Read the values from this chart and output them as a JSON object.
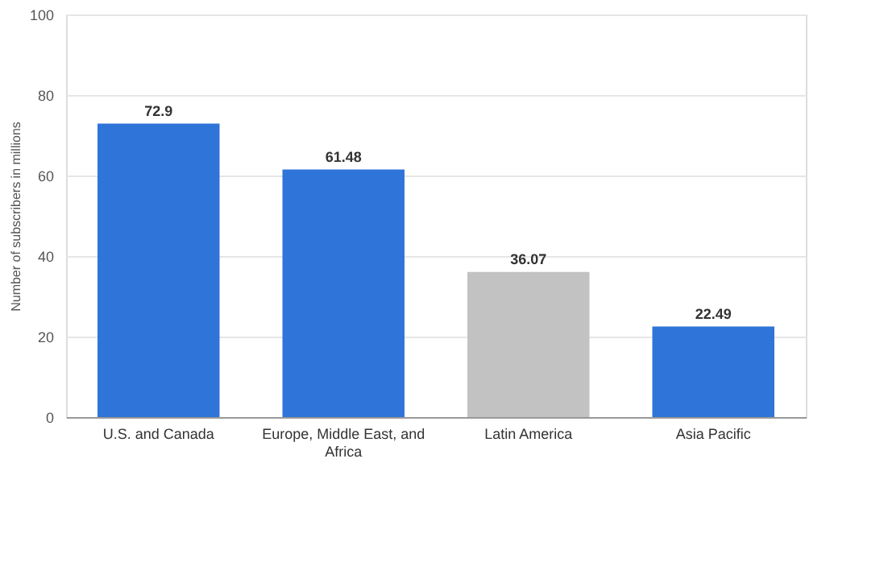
{
  "chart_data": {
    "type": "bar",
    "ylabel": "Number of subscribers in millions",
    "categories": [
      "U.S. and Canada",
      "Europe, Middle East, and Africa",
      "Latin America",
      "Asia Pacific"
    ],
    "values": [
      72.9,
      61.48,
      36.07,
      22.49
    ],
    "colors": [
      "#2f74d8",
      "#2f74d8",
      "#c2c2c2",
      "#2f74d8"
    ],
    "ylim": [
      0,
      100
    ],
    "yticks": [
      0,
      20,
      40,
      60,
      80,
      100
    ],
    "grid": "y",
    "data_labels": true
  }
}
